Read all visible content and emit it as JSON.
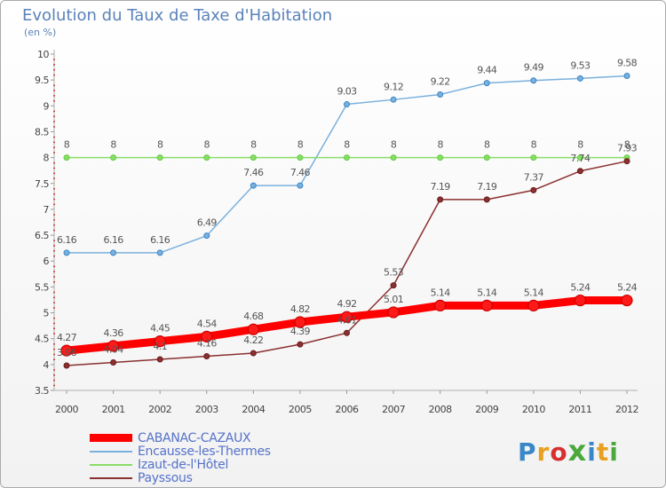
{
  "title": "Evolution du Taux de Taxe d'Habitation",
  "unit": "(en %)",
  "logo": {
    "text": "Proxiti",
    "colors": [
      "#3a87c8",
      "#e8a020",
      "#d83030",
      "#4aa83c",
      "#3a87c8",
      "#e8a020",
      "#4aa83c"
    ]
  },
  "chart_data": {
    "type": "line",
    "title": "Evolution du Taux de Taxe d'Habitation",
    "ylabel": "(en %)",
    "xlabel": "",
    "x": [
      "2000",
      "2001",
      "2002",
      "2003",
      "2004",
      "2005",
      "2006",
      "2007",
      "2008",
      "2009",
      "2010",
      "2011",
      "2012"
    ],
    "ylim": [
      3.5,
      10
    ],
    "yticks": [
      "3.5",
      "4",
      "4.5",
      "5",
      "5.5",
      "6",
      "6.5",
      "7",
      "7.5",
      "8",
      "8.5",
      "9",
      "9.5",
      "10"
    ],
    "grid": false,
    "legend_position": "bottom-left",
    "series": [
      {
        "name": "CABANAC-CAZAUX",
        "color": "#ff0000",
        "marker": "#cc0000",
        "thick": true,
        "values": [
          4.27,
          4.36,
          4.45,
          4.54,
          4.68,
          4.82,
          4.92,
          5.01,
          5.14,
          5.14,
          5.14,
          5.24,
          5.24
        ],
        "labels": [
          "4.27",
          "4.36",
          "4.45",
          "4.54",
          "4.68",
          "4.82",
          "4.92",
          "5.01",
          "5.14",
          "5.14",
          "5.14",
          "5.24",
          "5.24"
        ]
      },
      {
        "name": "Encausse-les-Thermes",
        "color": "#7ab0dc",
        "marker": "#3a85c8",
        "thick": false,
        "values": [
          6.16,
          6.16,
          6.16,
          6.49,
          7.46,
          7.46,
          9.03,
          9.12,
          9.22,
          9.44,
          9.49,
          9.53,
          9.58
        ],
        "labels": [
          "6.16",
          "6.16",
          "6.16",
          "6.49",
          "7.46",
          "7.46",
          "9.03",
          "9.12",
          "9.22",
          "9.44",
          "9.49",
          "9.53",
          "9.58"
        ]
      },
      {
        "name": "Izaut-de-l'Hôtel",
        "color": "#88dd66",
        "marker": "#66cc44",
        "thick": false,
        "values": [
          8,
          8,
          8,
          8,
          8,
          8,
          8,
          8,
          8,
          8,
          8,
          8,
          8
        ],
        "labels": [
          "8",
          "8",
          "8",
          "8",
          "8",
          "8",
          "8",
          "8",
          "8",
          "8",
          "8",
          "8",
          "8"
        ]
      },
      {
        "name": "Payssous",
        "color": "#8a3030",
        "marker": "#6a1a1a",
        "thick": false,
        "values": [
          3.98,
          4.04,
          4.1,
          4.16,
          4.22,
          4.39,
          4.61,
          5.53,
          7.19,
          7.19,
          7.37,
          7.74,
          7.93
        ],
        "labels": [
          "3.98",
          "4.04",
          "4.1",
          "4.16",
          "4.22",
          "4.39",
          "4.61",
          "5.53",
          "7.19",
          "7.19",
          "7.37",
          "7.74",
          "7.93"
        ]
      }
    ]
  }
}
